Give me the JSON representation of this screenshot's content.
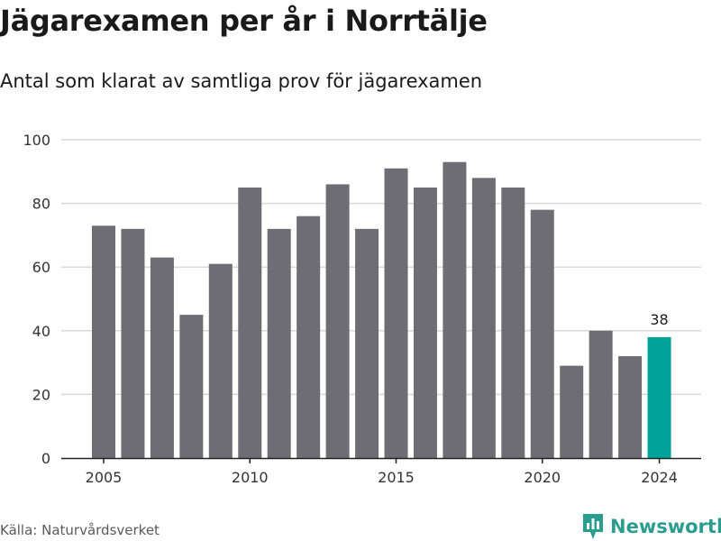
{
  "title": "Jägarexamen per år i Norrtälje",
  "subtitle": "Antal som klarat av samtliga prov för jägarexamen",
  "source": "Källa: Naturvårdsverket",
  "brand": "Newsworthy",
  "colors": {
    "bar": "#6e6d73",
    "highlight": "#00a398",
    "grid": "#d9d9d9",
    "axis": "#222222",
    "brand": "#2a9d8f"
  },
  "chart_data": {
    "type": "bar",
    "title": "Jägarexamen per år i Norrtälje",
    "subtitle": "Antal som klarat av samtliga prov för jägarexamen",
    "xlabel": "",
    "ylabel": "",
    "categories": [
      2005,
      2006,
      2007,
      2008,
      2009,
      2010,
      2011,
      2012,
      2013,
      2014,
      2015,
      2016,
      2017,
      2018,
      2019,
      2020,
      2021,
      2022,
      2023,
      2024
    ],
    "values": [
      73,
      72,
      63,
      45,
      61,
      85,
      72,
      76,
      86,
      72,
      91,
      85,
      93,
      88,
      85,
      78,
      29,
      40,
      32,
      38
    ],
    "highlight_index": 19,
    "data_labels": [
      {
        "index": 19,
        "text": "38"
      }
    ],
    "xticks": [
      "2005",
      "2010",
      "2015",
      "2020",
      "2024"
    ],
    "yticks": [
      "0",
      "20",
      "40",
      "60",
      "80",
      "100"
    ],
    "ylim": [
      0,
      100
    ],
    "grid": true,
    "legend": "none"
  }
}
